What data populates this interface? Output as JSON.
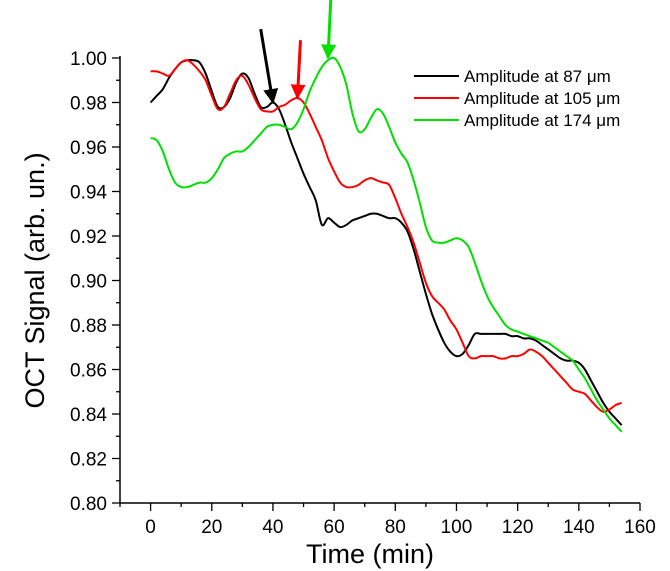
{
  "chart_data": {
    "type": "line",
    "xlabel": "Time (min)",
    "ylabel": "OCT Signal (arb. un.)",
    "xlim": [
      -10,
      160
    ],
    "ylim": [
      0.8,
      1.0
    ],
    "x_ticks": [
      0,
      20,
      40,
      60,
      80,
      100,
      120,
      140,
      160
    ],
    "y_ticks": [
      0.8,
      0.82,
      0.84,
      0.86,
      0.88,
      0.9,
      0.92,
      0.94,
      0.96,
      0.98,
      1.0
    ],
    "x_tick_labels": [
      "0",
      "20",
      "40",
      "60",
      "80",
      "100",
      "120",
      "140",
      "160"
    ],
    "y_tick_labels": [
      "0.80",
      "0.82",
      "0.84",
      "0.86",
      "0.88",
      "0.90",
      "0.92",
      "0.94",
      "0.96",
      "0.98",
      "1.00"
    ],
    "legend_position": "top-right",
    "series": [
      {
        "name": "Amplitude at 87 μm",
        "color": "#000000",
        "x": [
          0,
          2,
          4,
          6,
          8,
          10,
          12,
          14,
          16,
          18,
          20,
          22,
          24,
          26,
          28,
          30,
          32,
          34,
          36,
          38,
          40,
          42,
          44,
          46,
          48,
          50,
          52,
          54,
          56,
          58,
          60,
          62,
          64,
          66,
          68,
          70,
          72,
          74,
          76,
          78,
          80,
          82,
          84,
          86,
          88,
          90,
          92,
          94,
          96,
          98,
          100,
          102,
          104,
          106,
          108,
          110,
          112,
          114,
          116,
          118,
          120,
          122,
          124,
          126,
          128,
          130,
          132,
          134,
          136,
          138,
          140,
          142,
          144,
          146,
          148,
          150,
          152,
          154
        ],
        "y": [
          0.98,
          0.983,
          0.986,
          0.991,
          0.995,
          0.998,
          0.999,
          0.999,
          0.998,
          0.993,
          0.985,
          0.978,
          0.978,
          0.982,
          0.989,
          0.993,
          0.991,
          0.984,
          0.978,
          0.978,
          0.98,
          0.977,
          0.97,
          0.962,
          0.955,
          0.948,
          0.942,
          0.936,
          0.925,
          0.928,
          0.926,
          0.924,
          0.925,
          0.927,
          0.928,
          0.929,
          0.93,
          0.93,
          0.929,
          0.928,
          0.928,
          0.926,
          0.922,
          0.914,
          0.904,
          0.894,
          0.885,
          0.878,
          0.872,
          0.868,
          0.866,
          0.867,
          0.871,
          0.876,
          0.876,
          0.876,
          0.876,
          0.876,
          0.876,
          0.875,
          0.875,
          0.874,
          0.874,
          0.873,
          0.871,
          0.869,
          0.867,
          0.865,
          0.864,
          0.864,
          0.863,
          0.86,
          0.855,
          0.85,
          0.845,
          0.841,
          0.838,
          0.835
        ]
      },
      {
        "name": "Amplitude at 105 μm",
        "color": "#ff0000",
        "x": [
          0,
          2,
          4,
          6,
          8,
          10,
          12,
          14,
          16,
          18,
          20,
          22,
          24,
          26,
          28,
          30,
          32,
          34,
          36,
          38,
          40,
          42,
          44,
          46,
          48,
          50,
          52,
          54,
          56,
          58,
          60,
          62,
          64,
          66,
          68,
          70,
          72,
          74,
          76,
          78,
          80,
          82,
          84,
          86,
          88,
          90,
          92,
          94,
          96,
          98,
          100,
          102,
          104,
          106,
          108,
          110,
          112,
          114,
          116,
          118,
          120,
          122,
          124,
          126,
          128,
          130,
          132,
          134,
          136,
          138,
          140,
          142,
          144,
          146,
          148,
          150,
          152,
          154
        ],
        "y": [
          0.994,
          0.994,
          0.993,
          0.992,
          0.995,
          0.998,
          0.999,
          0.997,
          0.994,
          0.99,
          0.983,
          0.977,
          0.978,
          0.984,
          0.99,
          0.992,
          0.988,
          0.982,
          0.977,
          0.976,
          0.976,
          0.978,
          0.979,
          0.981,
          0.982,
          0.98,
          0.975,
          0.969,
          0.963,
          0.955,
          0.949,
          0.944,
          0.942,
          0.942,
          0.943,
          0.945,
          0.946,
          0.945,
          0.944,
          0.943,
          0.937,
          0.93,
          0.924,
          0.917,
          0.908,
          0.899,
          0.893,
          0.89,
          0.887,
          0.882,
          0.878,
          0.872,
          0.866,
          0.865,
          0.866,
          0.866,
          0.866,
          0.865,
          0.865,
          0.866,
          0.866,
          0.867,
          0.869,
          0.868,
          0.866,
          0.863,
          0.86,
          0.857,
          0.854,
          0.851,
          0.85,
          0.849,
          0.846,
          0.843,
          0.841,
          0.842,
          0.844,
          0.845
        ]
      },
      {
        "name": "Amplitude at 174 μm",
        "color": "#00e000",
        "x": [
          0,
          2,
          4,
          6,
          8,
          10,
          12,
          14,
          16,
          18,
          20,
          22,
          24,
          26,
          28,
          30,
          32,
          34,
          36,
          38,
          40,
          42,
          44,
          46,
          48,
          50,
          52,
          54,
          56,
          58,
          60,
          62,
          64,
          66,
          68,
          70,
          72,
          74,
          76,
          78,
          80,
          82,
          84,
          86,
          88,
          90,
          92,
          94,
          96,
          98,
          100,
          102,
          104,
          106,
          108,
          110,
          112,
          114,
          116,
          118,
          120,
          122,
          124,
          126,
          128,
          130,
          132,
          134,
          136,
          138,
          140,
          142,
          144,
          146,
          148,
          150,
          152,
          154
        ],
        "y": [
          0.964,
          0.963,
          0.958,
          0.95,
          0.944,
          0.942,
          0.942,
          0.943,
          0.944,
          0.944,
          0.946,
          0.95,
          0.955,
          0.957,
          0.958,
          0.958,
          0.96,
          0.963,
          0.966,
          0.969,
          0.97,
          0.97,
          0.969,
          0.968,
          0.971,
          0.977,
          0.985,
          0.991,
          0.996,
          0.999,
          1.0,
          0.996,
          0.988,
          0.975,
          0.967,
          0.968,
          0.973,
          0.977,
          0.975,
          0.969,
          0.962,
          0.957,
          0.953,
          0.945,
          0.935,
          0.924,
          0.918,
          0.917,
          0.917,
          0.918,
          0.919,
          0.918,
          0.915,
          0.908,
          0.9,
          0.893,
          0.888,
          0.884,
          0.88,
          0.878,
          0.877,
          0.876,
          0.875,
          0.874,
          0.873,
          0.872,
          0.87,
          0.868,
          0.866,
          0.864,
          0.86,
          0.856,
          0.851,
          0.846,
          0.842,
          0.838,
          0.835,
          0.832
        ]
      }
    ],
    "annotations": [
      {
        "type": "arrow",
        "color": "#000000",
        "target_x": 40,
        "target_y": 0.98,
        "from_x": 36,
        "from_y": 1.013
      },
      {
        "type": "arrow",
        "color": "#ff0000",
        "target_x": 48,
        "target_y": 0.982,
        "from_x": 49,
        "from_y": 1.008
      },
      {
        "type": "arrow",
        "color": "#00e000",
        "target_x": 58,
        "target_y": 1.0,
        "from_x": 59,
        "from_y": 1.029
      }
    ]
  }
}
